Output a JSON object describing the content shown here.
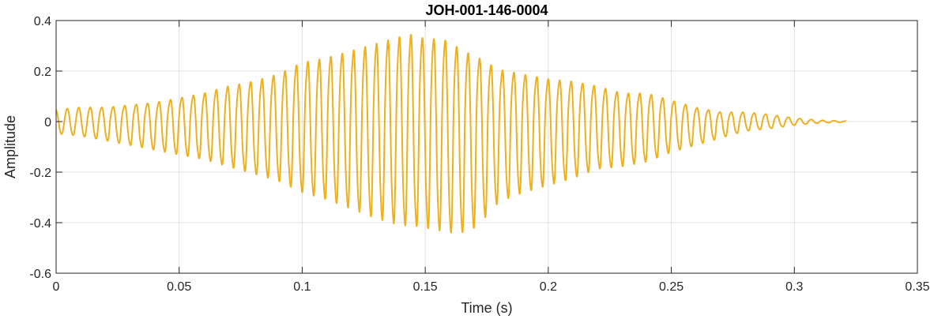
{
  "chart_data": {
    "type": "line",
    "title": "JOH-001-146-0004",
    "xlabel": "Time (s)",
    "ylabel": "Amplitude",
    "xlim": [
      0,
      0.35
    ],
    "ylim": [
      -0.6,
      0.4
    ],
    "xticks": [
      0,
      0.05,
      0.1,
      0.15,
      0.2,
      0.25,
      0.3,
      0.35
    ],
    "xtick_labels": [
      "0",
      "0.05",
      "0.1",
      "0.15",
      "0.2",
      "0.25",
      "0.3",
      "0.35"
    ],
    "yticks": [
      -0.6,
      -0.4,
      -0.2,
      0,
      0.2,
      0.4
    ],
    "ytick_labels": [
      "-0.6",
      "-0.4",
      "-0.2",
      "0",
      "0.2",
      "0.4"
    ],
    "grid": true,
    "line_color": "#EDB120",
    "series": [
      {
        "signal_duration_s": 0.321,
        "envelope": {
          "t": [
            0,
            0.01,
            0.02,
            0.03,
            0.04,
            0.05,
            0.06,
            0.07,
            0.08,
            0.09,
            0.1,
            0.11,
            0.12,
            0.13,
            0.14,
            0.145,
            0.15,
            0.155,
            0.16,
            0.165,
            0.17,
            0.175,
            0.18,
            0.19,
            0.2,
            0.21,
            0.22,
            0.23,
            0.24,
            0.25,
            0.26,
            0.27,
            0.28,
            0.29,
            0.3,
            0.31,
            0.321
          ],
          "max": [
            0.05,
            0.06,
            0.06,
            0.07,
            0.08,
            0.1,
            0.12,
            0.15,
            0.17,
            0.2,
            0.25,
            0.27,
            0.3,
            0.33,
            0.36,
            0.37,
            0.35,
            0.35,
            0.34,
            0.3,
            0.28,
            0.25,
            0.22,
            0.2,
            0.18,
            0.17,
            0.15,
            0.12,
            0.12,
            0.09,
            0.06,
            0.04,
            0.04,
            0.03,
            0.015,
            0.006,
            0.002
          ],
          "min": [
            -0.05,
            -0.06,
            -0.08,
            -0.1,
            -0.12,
            -0.14,
            -0.16,
            -0.19,
            -0.22,
            -0.25,
            -0.3,
            -0.33,
            -0.37,
            -0.41,
            -0.44,
            -0.44,
            -0.45,
            -0.46,
            -0.47,
            -0.47,
            -0.45,
            -0.4,
            -0.34,
            -0.3,
            -0.27,
            -0.24,
            -0.2,
            -0.19,
            -0.17,
            -0.13,
            -0.1,
            -0.07,
            -0.04,
            -0.03,
            -0.015,
            -0.006,
            -0.002
          ]
        }
      }
    ]
  }
}
